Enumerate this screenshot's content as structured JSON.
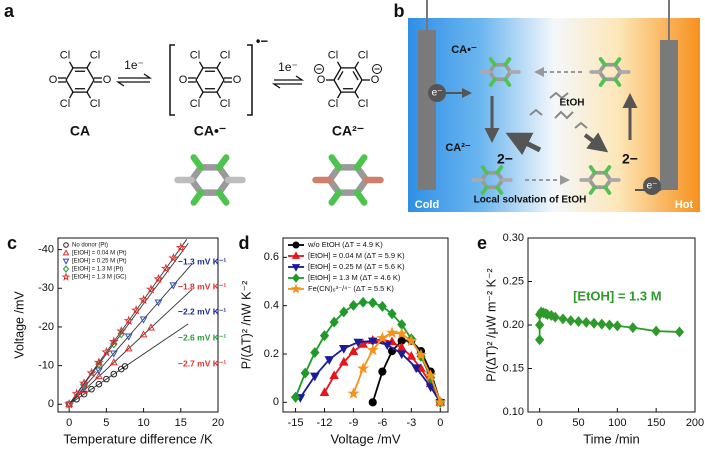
{
  "panel_a": {
    "label": "a",
    "electron_transfer": "1e⁻",
    "radical_charge": "•−",
    "substituent": "Cl",
    "oxygen": "O",
    "species": [
      "CA",
      "CA•⁻",
      "CA²⁻"
    ]
  },
  "panel_b": {
    "label": "b",
    "ca_radical": "CA•⁻",
    "ca_dianion": "CA²⁻",
    "charge": "2−",
    "electron": "e⁻",
    "solvent": "EtOH",
    "cold": "Cold",
    "hot": "Hot",
    "caption": "Local solvation of EtOH"
  },
  "chart_data": [
    {
      "type": "scatter",
      "panel": "c",
      "x_label": "Temperature difference /K",
      "y_label": "Voltage /mV",
      "xlim": [
        -1.5,
        20
      ],
      "xticks": [
        0,
        5,
        10,
        15,
        20
      ],
      "ylim": [
        2,
        -43
      ],
      "yticks": [
        0,
        -10,
        -20,
        -30,
        -40
      ],
      "legend": "upper left",
      "marker_filled": false,
      "series": [
        {
          "name": "No donor (Pt)",
          "color": "#222222",
          "marker": "circle",
          "x": [
            0,
            1,
            2,
            3,
            4,
            5,
            6,
            7,
            7.5
          ],
          "values": [
            0,
            -1.3,
            -2.6,
            -3.9,
            -5.2,
            -6.5,
            -7.8,
            -9.1,
            -9.8
          ],
          "fit": {
            "slope": -1.3,
            "label": "−1.3 mV K⁻¹",
            "label_color": "#1c2a8c",
            "x": [
              0,
              16
            ]
          }
        },
        {
          "name": "[EtOH] = 0.04 M (Pt)",
          "color": "#e03030",
          "marker": "triangle-up",
          "x": [
            0,
            2,
            4,
            6,
            8,
            10,
            11
          ],
          "values": [
            0,
            -3.6,
            -7.2,
            -10.8,
            -14.4,
            -18,
            -19.8
          ],
          "fit": {
            "slope": -1.8,
            "label": "−1.8 mV K⁻¹",
            "label_color": "#e03030",
            "x": [
              0,
              16.5
            ]
          }
        },
        {
          "name": "[EtOH] = 0.25 M (Pt)",
          "color": "#3050c0",
          "marker": "triangle-down",
          "x": [
            0,
            2,
            4,
            6,
            8,
            10,
            12,
            14
          ],
          "values": [
            0,
            -4.4,
            -8.8,
            -13.2,
            -17.6,
            -22,
            -26.4,
            -30.8
          ],
          "fit": {
            "slope": -2.2,
            "label": "−2.2 mV K⁻¹",
            "label_color": "#1c2a8c",
            "x": [
              0,
              16.5
            ]
          }
        },
        {
          "name": "[EtOH] = 1.3 M (Pt)",
          "color": "#2a9a3a",
          "marker": "diamond",
          "x": [
            0,
            2,
            4,
            6,
            7
          ],
          "values": [
            0,
            -5.2,
            -10.4,
            -15.6,
            -18.2
          ],
          "fit": {
            "slope": -2.6,
            "label": "−2.6 mV K⁻¹",
            "label_color": "#2a9a3a",
            "x": [
              0,
              16
            ]
          }
        },
        {
          "name": "[EtOH] = 1.3 M (GC)",
          "color": "#e03030",
          "marker": "star",
          "x": [
            0,
            1,
            2,
            3,
            4,
            5,
            6,
            7,
            8,
            9,
            10,
            11,
            12,
            13,
            14,
            15
          ],
          "values": [
            0,
            -2.7,
            -5.4,
            -8.1,
            -10.8,
            -13.5,
            -16.2,
            -18.9,
            -21.6,
            -24.3,
            -27,
            -29.7,
            -32.4,
            -35.1,
            -37.8,
            -40.5
          ],
          "fit": {
            "slope": -2.7,
            "label": "−2.7 mV K⁻¹",
            "label_color": "#e03030",
            "x": [
              0,
              15.8
            ]
          }
        }
      ]
    },
    {
      "type": "line",
      "panel": "d",
      "x_label": "Voltage /mV",
      "y_label": "P/(ΔT)² /nW K⁻²",
      "xlim": [
        -16.3,
        0.8
      ],
      "xticks": [
        -15,
        -12,
        -9,
        -6,
        -3,
        0
      ],
      "ylim": [
        -0.04,
        0.68
      ],
      "yticks": [
        0,
        0.2,
        0.4,
        0.6
      ],
      "legend": "upper left",
      "marker_filled": true,
      "series": [
        {
          "name": "w/o EtOH (ΔT = 4.9 K)",
          "color": "#000000",
          "marker": "circle",
          "x": [
            -7,
            -6,
            -5,
            -4,
            -3,
            -2,
            -1,
            0
          ],
          "values": [
            0,
            0.127,
            0.212,
            0.255,
            0.255,
            0.212,
            0.127,
            0
          ]
        },
        {
          "name": "[EtOH] = 0.04 M (ΔT = 5.9 K)",
          "color": "#e8141c",
          "marker": "triangle-up",
          "x": [
            -12,
            -11,
            -10,
            -9,
            -8,
            -7,
            -6,
            -5,
            -4,
            -3,
            -2,
            -1,
            0
          ],
          "values": [
            0.04,
            0.11,
            0.166,
            0.21,
            0.24,
            0.256,
            0.26,
            0.25,
            0.226,
            0.19,
            0.14,
            0.077,
            0
          ]
        },
        {
          "name": "[EtOH] = 0.25 M (ΔT = 5.6 K)",
          "color": "#1a1a9a",
          "marker": "triangle-down",
          "x": [
            -14.5,
            -13,
            -11.5,
            -10,
            -8.5,
            -7,
            -5.5,
            -4,
            -2.5,
            -1,
            0
          ],
          "values": [
            0.02,
            0.109,
            0.177,
            0.223,
            0.249,
            0.254,
            0.238,
            0.201,
            0.143,
            0.064,
            0
          ]
        },
        {
          "name": "[EtOH] = 1.3 M (ΔT = 4.6 K)",
          "color": "#1e9a2a",
          "marker": "diamond",
          "x": [
            -15,
            -14,
            -13,
            -12,
            -11,
            -10,
            -9,
            -8,
            -7,
            -6,
            -5,
            -4,
            -3,
            -2,
            -1,
            0
          ],
          "values": [
            0.021,
            0.121,
            0.206,
            0.276,
            0.332,
            0.374,
            0.401,
            0.414,
            0.412,
            0.397,
            0.366,
            0.322,
            0.263,
            0.19,
            0.102,
            0
          ]
        },
        {
          "name": "Fe(CN)₆³⁻/⁴⁻ (ΔT = 5.5 K)",
          "color": "#f5921e",
          "marker": "star",
          "x": [
            -9,
            -8,
            -7,
            -6,
            -5,
            -4,
            -3,
            -2,
            -1,
            0
          ],
          "values": [
            0.036,
            0.14,
            0.216,
            0.266,
            0.288,
            0.284,
            0.254,
            0.196,
            0.111,
            0
          ]
        }
      ]
    },
    {
      "type": "line",
      "panel": "e",
      "x_label": "Time /min",
      "y_label": "P/(ΔT)² /μW m⁻² K⁻²",
      "xlim": [
        -15,
        200
      ],
      "xticks": [
        0,
        50,
        100,
        150,
        200
      ],
      "ylim": [
        0.1,
        0.3
      ],
      "yticks": [
        {
          "value": 0.1,
          "label": "0.10"
        },
        0.15,
        {
          "value": 0.2,
          "label": "0.20"
        },
        0.25,
        {
          "value": 0.3,
          "label": "0.30"
        }
      ],
      "marker_filled": true,
      "annotation": "[EtOH] = 1.3 M",
      "series": [
        {
          "color": "#2e9a2a",
          "marker": "diamond",
          "x": [
            0,
            0,
            0,
            2,
            5,
            8,
            10,
            15,
            20,
            30,
            40,
            50,
            60,
            70,
            80,
            90,
            100,
            120,
            150,
            180
          ],
          "values": [
            0.183,
            0.2,
            0.212,
            0.215,
            0.214,
            0.213,
            0.212,
            0.211,
            0.209,
            0.207,
            0.205,
            0.204,
            0.203,
            0.202,
            0.201,
            0.2,
            0.199,
            0.197,
            0.193,
            0.192
          ]
        }
      ]
    }
  ]
}
